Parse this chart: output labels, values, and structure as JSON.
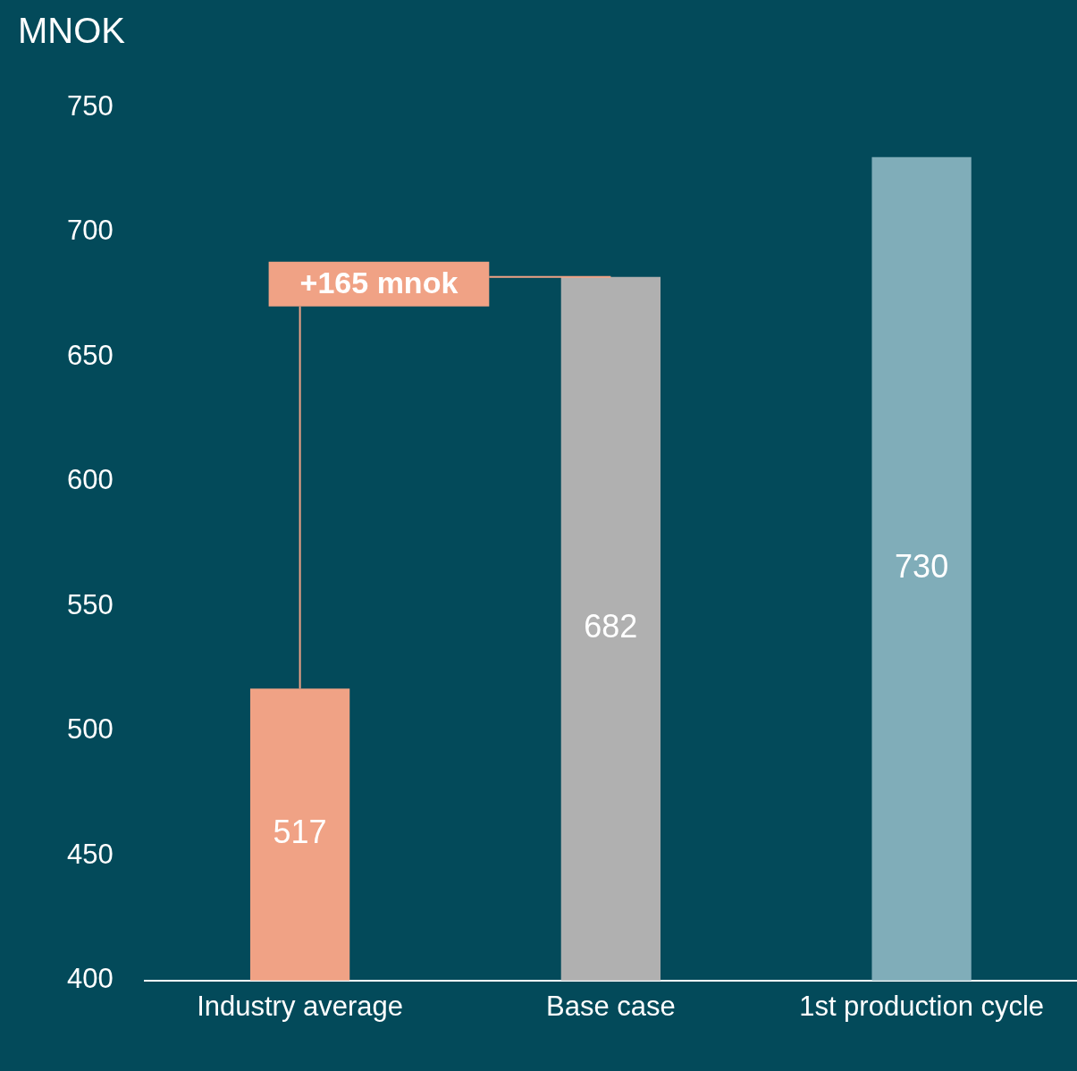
{
  "chart_data": {
    "type": "bar",
    "ylabel": "MNOK",
    "categories": [
      "Industry average",
      "Base case",
      "1st production cycle"
    ],
    "values": [
      517,
      682,
      730
    ],
    "colors": [
      "#f0a285",
      "#b0b0b0",
      "#80adb9"
    ],
    "ylim": [
      400,
      750
    ],
    "yticks": [
      400,
      450,
      500,
      550,
      600,
      650,
      700,
      750
    ],
    "grid": false,
    "legend": false,
    "data_labels": true,
    "annotations": [
      "+165 mnok"
    ]
  }
}
